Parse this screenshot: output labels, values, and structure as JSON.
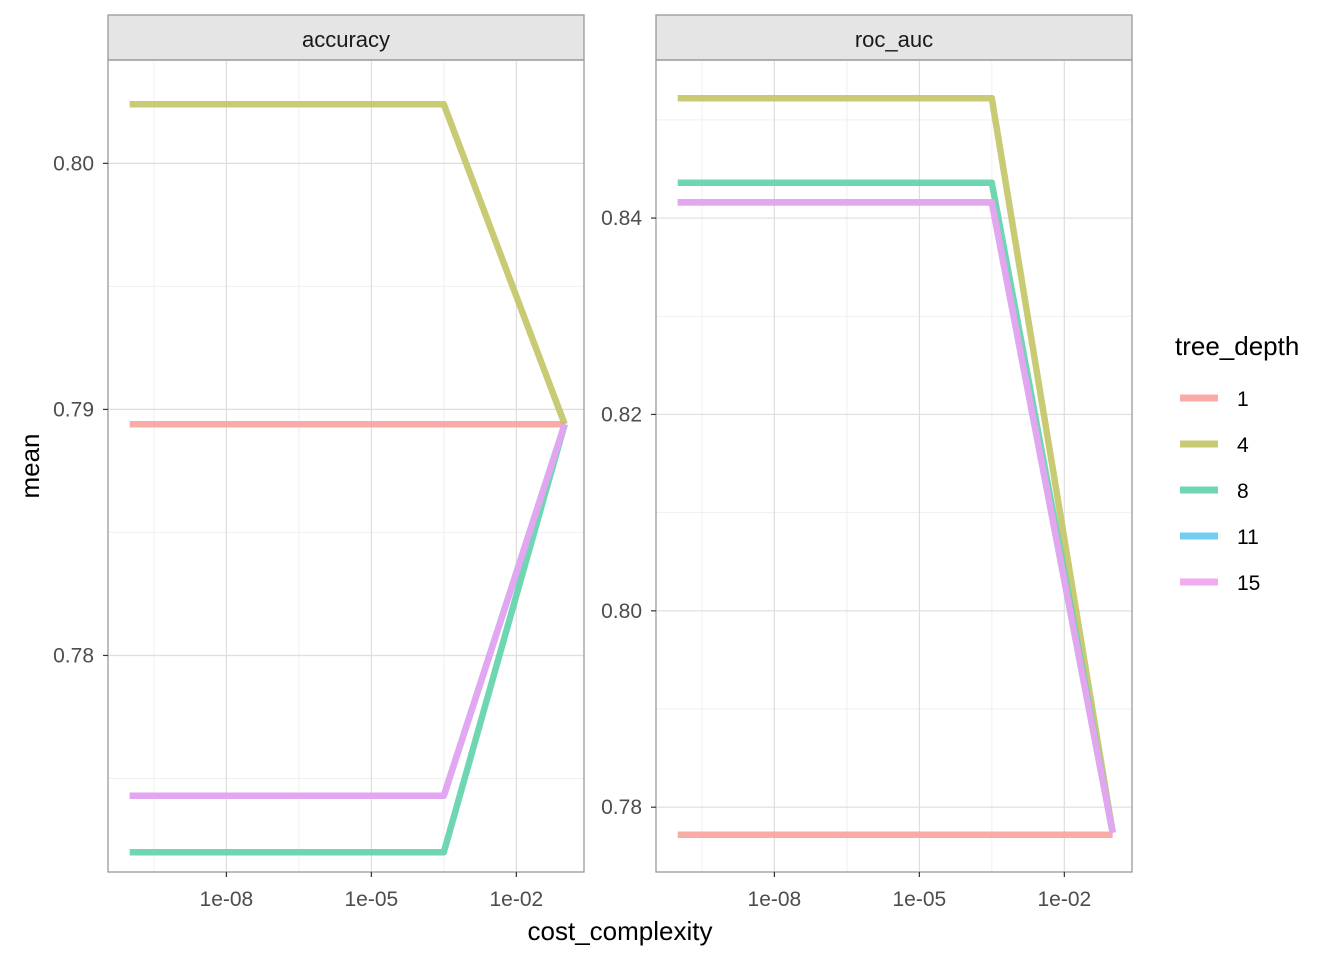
{
  "chart_data": {
    "type": "line",
    "xlabel": "cost_complexity",
    "ylabel": "mean",
    "x_scale": "log10",
    "x_ticks": [
      "1e-08",
      "1e-05",
      "1e-02"
    ],
    "x_tick_values": [
      1e-08,
      1e-05,
      0.01
    ],
    "legend": {
      "title": "tree_depth",
      "position": "right",
      "entries": [
        {
          "label": "1",
          "color": "#F8A29E"
        },
        {
          "label": "4",
          "color": "#C3C465"
        },
        {
          "label": "8",
          "color": "#5ED3A9"
        },
        {
          "label": "11",
          "color": "#63C8F2"
        },
        {
          "label": "15",
          "color": "#EFA2F0"
        }
      ]
    },
    "x": [
      1e-10,
      0.000316,
      0.1
    ],
    "panels": [
      {
        "facet": "accuracy",
        "ylim": [
          0.7712,
          0.8042
        ],
        "y_ticks": [
          0.78,
          0.79,
          0.8
        ],
        "y_tick_labels": [
          "0.78",
          "0.79",
          "0.80"
        ],
        "series": [
          {
            "name": "1",
            "values": [
              0.7894,
              0.7894,
              0.7894
            ]
          },
          {
            "name": "4",
            "values": [
              0.8024,
              0.8024,
              0.7894
            ]
          },
          {
            "name": "8",
            "values": [
              0.772,
              0.772,
              0.7894
            ]
          },
          {
            "name": "11",
            "values": [
              0.7743,
              0.7743,
              0.7894
            ]
          },
          {
            "name": "15",
            "values": [
              0.7743,
              0.7743,
              0.7894
            ]
          }
        ]
      },
      {
        "facet": "roc_auc",
        "ylim": [
          0.7734,
          0.8561
        ],
        "y_ticks": [
          0.78,
          0.8,
          0.82,
          0.84
        ],
        "y_tick_labels": [
          "0.78",
          "0.80",
          "0.82",
          "0.84"
        ],
        "series": [
          {
            "name": "1",
            "values": [
              0.7772,
              0.7772,
              0.7772
            ]
          },
          {
            "name": "4",
            "values": [
              0.8522,
              0.8522,
              0.7774
            ]
          },
          {
            "name": "8",
            "values": [
              0.8436,
              0.8436,
              0.7774
            ]
          },
          {
            "name": "11",
            "values": [
              0.8416,
              0.8416,
              0.7774
            ]
          },
          {
            "name": "15",
            "values": [
              0.8416,
              0.8416,
              0.7774
            ]
          }
        ]
      }
    ]
  },
  "colors": {
    "panel_border": "#999999",
    "strip_fill": "#E5E5E5",
    "grid_major": "#DEDEDE",
    "grid_minor": "#EFEFEF",
    "tick_text": "#4D4D4D",
    "title_text": "#000000"
  }
}
